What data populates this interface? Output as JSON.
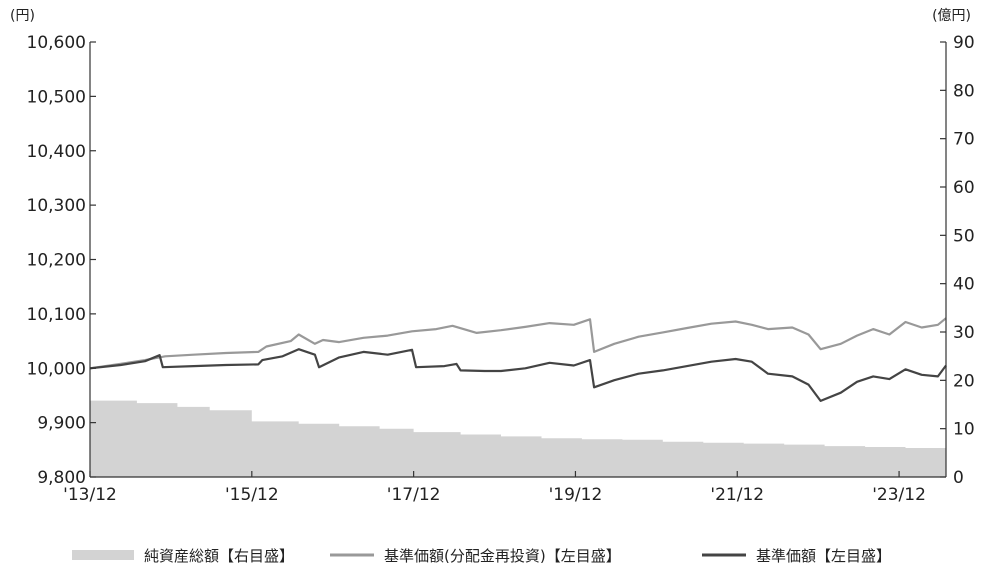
{
  "chart_data": {
    "type": "line",
    "left_axis": {
      "unit_label": "(円)",
      "ylim": [
        9800,
        10600
      ],
      "ticks": [
        9800,
        9900,
        10000,
        10100,
        10200,
        10300,
        10400,
        10500,
        10600
      ],
      "tick_labels": [
        "9,800",
        "9,900",
        "10,000",
        "10,100",
        "10,200",
        "10,300",
        "10,400",
        "10,500",
        "10,600"
      ]
    },
    "right_axis": {
      "unit_label": "(億円)",
      "ylim": [
        0,
        90
      ],
      "ticks": [
        0,
        10,
        20,
        30,
        40,
        50,
        60,
        70,
        80,
        90
      ],
      "tick_labels": [
        "0",
        "10",
        "20",
        "30",
        "40",
        "50",
        "60",
        "70",
        "80",
        "90"
      ]
    },
    "x_axis": {
      "range": [
        2013.92,
        2024.5
      ],
      "ticks": [
        2013.92,
        2015.92,
        2017.92,
        2019.92,
        2021.92,
        2023.92
      ],
      "tick_labels": [
        "'13/12",
        "'15/12",
        "'17/12",
        "'19/12",
        "'21/12",
        "'23/12"
      ]
    },
    "grid": false,
    "legend": {
      "position": "bottom",
      "entries": [
        {
          "label": "純資産総額【右目盛】",
          "color": "#d3d3d3",
          "style": "bar"
        },
        {
          "label": "基準価額(分配金再投資)【左目盛】",
          "color": "#999999",
          "style": "line"
        },
        {
          "label": "基準価額【左目盛】",
          "color": "#444444",
          "style": "line"
        }
      ]
    },
    "series": [
      {
        "axis": "right",
        "type": "area",
        "color": "#d3d3d3",
        "x": [
          2013.92,
          2014.5,
          2015.0,
          2015.4,
          2015.92,
          2016.5,
          2017.0,
          2017.5,
          2017.92,
          2018.5,
          2019.0,
          2019.5,
          2020.0,
          2020.5,
          2021.0,
          2021.5,
          2022.0,
          2022.5,
          2023.0,
          2023.5,
          2024.0,
          2024.5
        ],
        "values": [
          15.8,
          15.3,
          14.5,
          13.8,
          11.5,
          11.0,
          10.5,
          10.0,
          9.3,
          8.8,
          8.4,
          8.0,
          7.8,
          7.7,
          7.3,
          7.1,
          6.9,
          6.7,
          6.4,
          6.2,
          6.0,
          5.6
        ]
      },
      {
        "axis": "left",
        "type": "line",
        "color": "#999999",
        "x": [
          2013.92,
          2014.3,
          2014.6,
          2014.85,
          2015.2,
          2015.6,
          2016.0,
          2016.1,
          2016.4,
          2016.5,
          2016.7,
          2016.8,
          2017.0,
          2017.3,
          2017.6,
          2017.9,
          2018.2,
          2018.4,
          2018.7,
          2019.0,
          2019.3,
          2019.6,
          2019.9,
          2020.1,
          2020.15,
          2020.4,
          2020.7,
          2021.0,
          2021.3,
          2021.6,
          2021.9,
          2022.1,
          2022.3,
          2022.6,
          2022.8,
          2022.95,
          2023.2,
          2023.4,
          2023.6,
          2023.8,
          2024.0,
          2024.2,
          2024.4,
          2024.5
        ],
        "values": [
          10000,
          10008,
          10015,
          10022,
          10025,
          10028,
          10030,
          10040,
          10050,
          10062,
          10045,
          10052,
          10048,
          10056,
          10060,
          10068,
          10072,
          10078,
          10065,
          10070,
          10076,
          10083,
          10080,
          10090,
          10030,
          10045,
          10058,
          10066,
          10074,
          10082,
          10086,
          10080,
          10072,
          10075,
          10062,
          10035,
          10045,
          10060,
          10072,
          10062,
          10085,
          10075,
          10080,
          10092
        ]
      },
      {
        "axis": "left",
        "type": "line",
        "color": "#444444",
        "x": [
          2013.92,
          2014.3,
          2014.6,
          2014.78,
          2014.82,
          2015.2,
          2015.6,
          2016.0,
          2016.05,
          2016.3,
          2016.5,
          2016.7,
          2016.75,
          2017.0,
          2017.3,
          2017.6,
          2017.9,
          2017.95,
          2018.3,
          2018.45,
          2018.5,
          2018.8,
          2019.0,
          2019.3,
          2019.6,
          2019.9,
          2020.1,
          2020.15,
          2020.4,
          2020.7,
          2021.0,
          2021.3,
          2021.6,
          2021.9,
          2022.1,
          2022.3,
          2022.6,
          2022.8,
          2022.95,
          2023.2,
          2023.4,
          2023.6,
          2023.8,
          2024.0,
          2024.2,
          2024.4,
          2024.5
        ],
        "values": [
          10000,
          10006,
          10013,
          10024,
          10002,
          10004,
          10006,
          10007,
          10015,
          10022,
          10035,
          10025,
          10002,
          10020,
          10030,
          10025,
          10034,
          10002,
          10004,
          10008,
          9996,
          9995,
          9995,
          10000,
          10010,
          10005,
          10015,
          9965,
          9978,
          9990,
          9996,
          10004,
          10012,
          10017,
          10012,
          9990,
          9985,
          9970,
          9940,
          9955,
          9975,
          9985,
          9980,
          9998,
          9988,
          9985,
          10005
        ]
      }
    ]
  }
}
